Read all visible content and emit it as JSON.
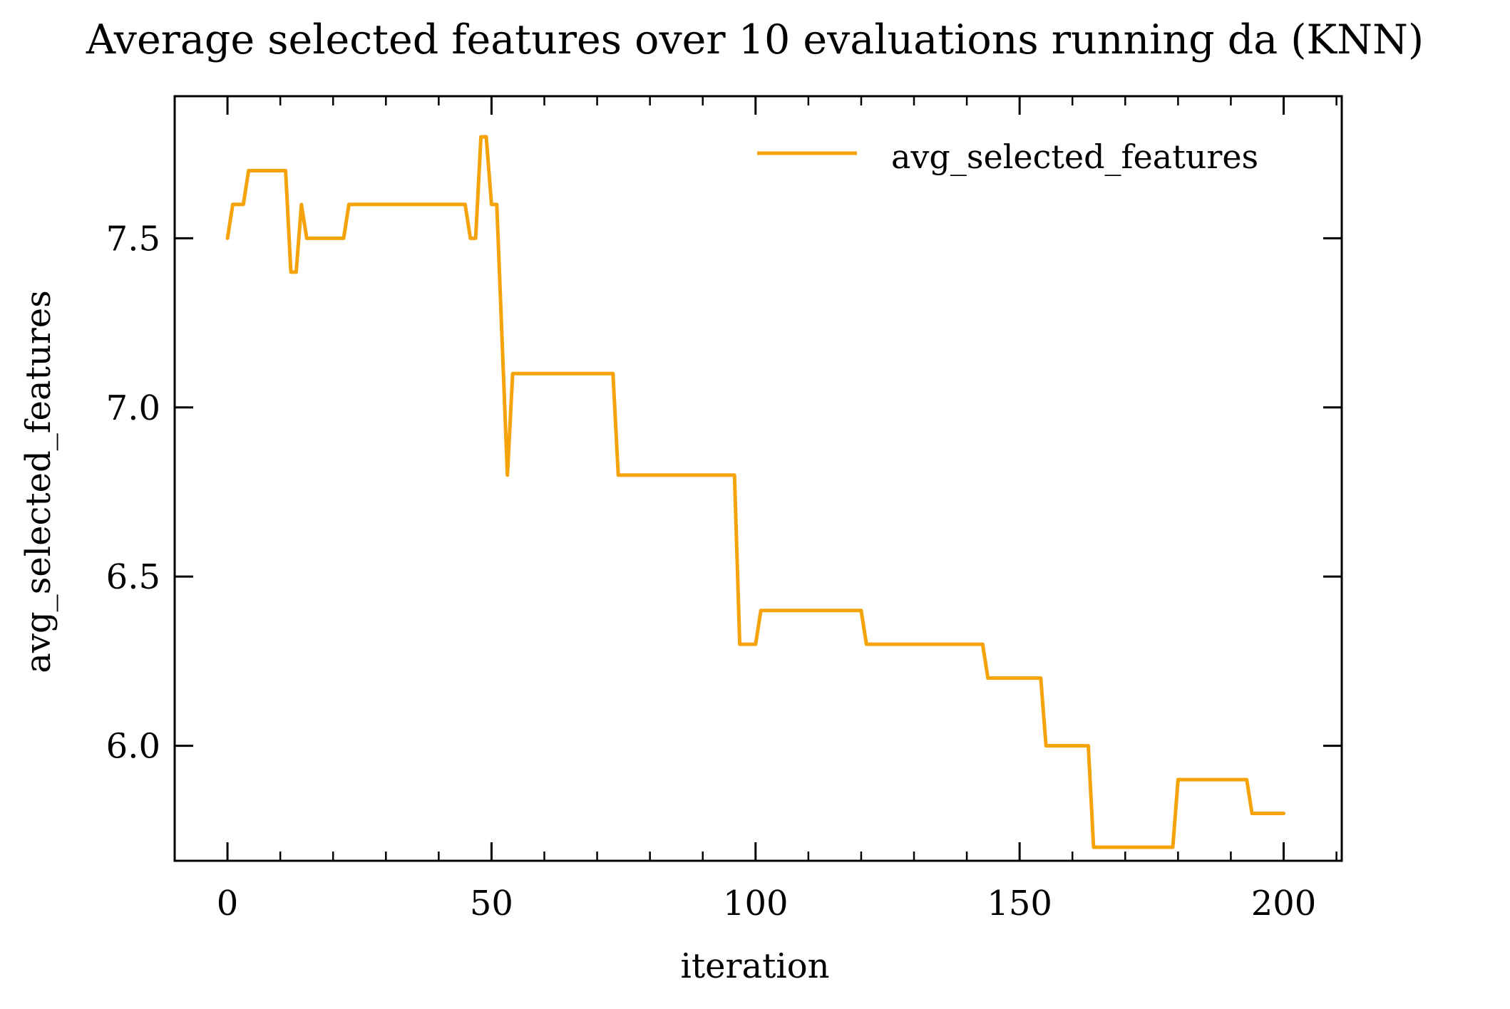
{
  "chart_data": {
    "type": "line",
    "title": "Average selected features over 10 evaluations running da (KNN)",
    "xlabel": "iteration",
    "ylabel": "avg_selected_features",
    "xlim": [
      -10,
      211
    ],
    "ylim": [
      5.66,
      7.92
    ],
    "xticks": [
      0,
      50,
      100,
      150,
      200
    ],
    "xtick_labels": [
      "0",
      "50",
      "100",
      "150",
      "200"
    ],
    "yticks": [
      6.0,
      6.5,
      7.0,
      7.5
    ],
    "ytick_labels": [
      "6.0",
      "6.5",
      "7.0",
      "7.5"
    ],
    "grid": false,
    "legend": "top-right",
    "series": [
      {
        "name": "avg_selected_features",
        "color": "#f5a30b",
        "x": [
          0,
          1,
          3,
          4,
          11,
          12,
          13,
          14,
          15,
          22,
          23,
          45,
          46,
          47,
          48,
          49,
          50,
          51,
          53,
          54,
          73,
          74,
          96,
          97,
          100,
          101,
          120,
          121,
          143,
          144,
          154,
          155,
          163,
          164,
          179,
          180,
          193,
          194,
          200
        ],
        "y": [
          7.5,
          7.6,
          7.6,
          7.7,
          7.7,
          7.4,
          7.4,
          7.6,
          7.5,
          7.5,
          7.6,
          7.6,
          7.5,
          7.5,
          7.8,
          7.8,
          7.6,
          7.6,
          6.8,
          7.1,
          7.1,
          6.8,
          6.8,
          6.3,
          6.3,
          6.4,
          6.4,
          6.3,
          6.3,
          6.2,
          6.2,
          6.0,
          6.0,
          5.7,
          5.7,
          5.9,
          5.9,
          5.8,
          5.8
        ]
      }
    ]
  }
}
